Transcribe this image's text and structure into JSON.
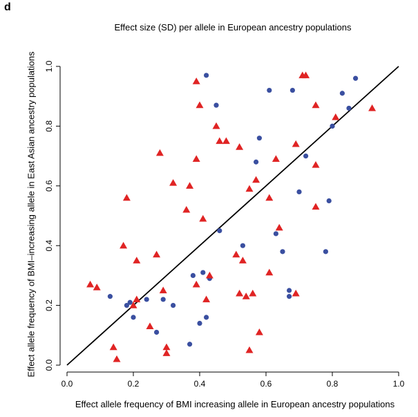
{
  "panel_letter": "d",
  "chart_data": {
    "type": "scatter",
    "title": "Effect size (SD) per allele in European ancestry populations",
    "xlabel": "Effect allele frequency of BMI increasing allele in European ancestry populations",
    "ylabel": "Effect allele frequency of BMI–increasing allele in East Asian ancestry populations",
    "xlim": [
      0.0,
      1.0
    ],
    "ylim": [
      0.0,
      1.0
    ],
    "xticks": [
      "0.0",
      "0.2",
      "0.4",
      "0.6",
      "0.8",
      "1.0"
    ],
    "yticks": [
      "0.0",
      "0.2",
      "0.4",
      "0.6",
      "0.8",
      "1.0"
    ],
    "reference_line": {
      "slope": 1,
      "intercept": 0,
      "color": "#000000"
    },
    "grid": false,
    "legend": "none",
    "series": [
      {
        "marker": "circle",
        "color": "#3a4fa0",
        "points": [
          [
            0.42,
            0.97
          ],
          [
            0.87,
            0.96
          ],
          [
            0.61,
            0.92
          ],
          [
            0.68,
            0.92
          ],
          [
            0.83,
            0.91
          ],
          [
            0.45,
            0.87
          ],
          [
            0.85,
            0.86
          ],
          [
            0.8,
            0.8
          ],
          [
            0.58,
            0.76
          ],
          [
            0.72,
            0.7
          ],
          [
            0.57,
            0.68
          ],
          [
            0.7,
            0.58
          ],
          [
            0.79,
            0.55
          ],
          [
            0.46,
            0.45
          ],
          [
            0.63,
            0.44
          ],
          [
            0.53,
            0.4
          ],
          [
            0.65,
            0.38
          ],
          [
            0.78,
            0.38
          ],
          [
            0.41,
            0.31
          ],
          [
            0.38,
            0.3
          ],
          [
            0.43,
            0.29
          ],
          [
            0.67,
            0.25
          ],
          [
            0.13,
            0.23
          ],
          [
            0.67,
            0.23
          ],
          [
            0.24,
            0.22
          ],
          [
            0.29,
            0.22
          ],
          [
            0.19,
            0.21
          ],
          [
            0.18,
            0.2
          ],
          [
            0.32,
            0.2
          ],
          [
            0.2,
            0.16
          ],
          [
            0.42,
            0.16
          ],
          [
            0.4,
            0.14
          ],
          [
            0.27,
            0.11
          ],
          [
            0.37,
            0.07
          ]
        ]
      },
      {
        "marker": "triangle",
        "color": "#e02424",
        "points": [
          [
            0.71,
            0.97
          ],
          [
            0.72,
            0.97
          ],
          [
            0.39,
            0.95
          ],
          [
            0.4,
            0.87
          ],
          [
            0.75,
            0.87
          ],
          [
            0.92,
            0.86
          ],
          [
            0.81,
            0.83
          ],
          [
            0.45,
            0.8
          ],
          [
            0.46,
            0.75
          ],
          [
            0.48,
            0.75
          ],
          [
            0.69,
            0.74
          ],
          [
            0.52,
            0.73
          ],
          [
            0.28,
            0.71
          ],
          [
            0.39,
            0.69
          ],
          [
            0.63,
            0.69
          ],
          [
            0.75,
            0.67
          ],
          [
            0.57,
            0.62
          ],
          [
            0.32,
            0.61
          ],
          [
            0.37,
            0.6
          ],
          [
            0.55,
            0.59
          ],
          [
            0.18,
            0.56
          ],
          [
            0.61,
            0.56
          ],
          [
            0.75,
            0.53
          ],
          [
            0.36,
            0.52
          ],
          [
            0.41,
            0.49
          ],
          [
            0.64,
            0.46
          ],
          [
            0.17,
            0.4
          ],
          [
            0.51,
            0.37
          ],
          [
            0.27,
            0.37
          ],
          [
            0.21,
            0.35
          ],
          [
            0.53,
            0.35
          ],
          [
            0.61,
            0.31
          ],
          [
            0.43,
            0.3
          ],
          [
            0.39,
            0.27
          ],
          [
            0.07,
            0.27
          ],
          [
            0.09,
            0.26
          ],
          [
            0.29,
            0.25
          ],
          [
            0.52,
            0.24
          ],
          [
            0.56,
            0.24
          ],
          [
            0.69,
            0.24
          ],
          [
            0.54,
            0.23
          ],
          [
            0.21,
            0.22
          ],
          [
            0.42,
            0.22
          ],
          [
            0.2,
            0.2
          ],
          [
            0.25,
            0.13
          ],
          [
            0.58,
            0.11
          ],
          [
            0.14,
            0.06
          ],
          [
            0.3,
            0.06
          ],
          [
            0.55,
            0.05
          ],
          [
            0.3,
            0.04
          ],
          [
            0.15,
            0.02
          ]
        ]
      }
    ]
  }
}
